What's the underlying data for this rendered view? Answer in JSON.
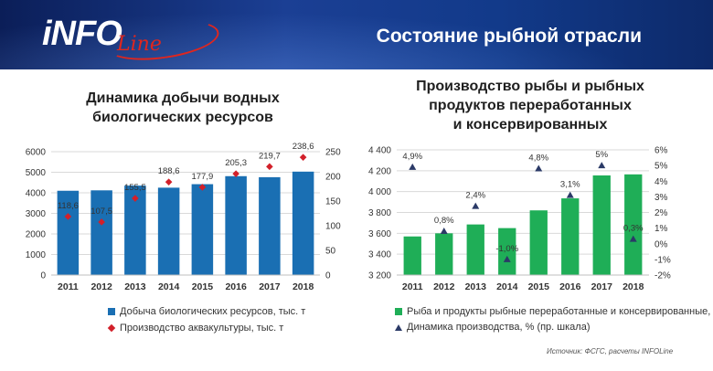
{
  "header": {
    "logo_text": "iNFO",
    "logo_script": "Line",
    "title": "Состояние рыбной отрасли"
  },
  "source": "Источник: ФСГС, расчеты INFOLine",
  "chart_data": [
    {
      "type": "bar",
      "title": "Динамика добычи водных биологических ресурсов",
      "title_lines": [
        "Динамика добычи водных",
        "биологических ресурсов"
      ],
      "categories": [
        "2011",
        "2012",
        "2013",
        "2014",
        "2015",
        "2016",
        "2017",
        "2018"
      ],
      "series": [
        {
          "name": "Добыча биологических ресурсов, тыс. т",
          "kind": "bar",
          "axis": "left",
          "color": "#1a6fb3",
          "values": [
            4100,
            4120,
            4350,
            4250,
            4420,
            4810,
            4760,
            5030
          ]
        },
        {
          "name": "Производство аквакультуры, тыс. т",
          "kind": "marker",
          "axis": "right",
          "color": "#d2202a",
          "values": [
            118.6,
            107.5,
            155.5,
            188.6,
            177.9,
            205.3,
            219.7,
            238.6
          ],
          "labels": [
            "118,6",
            "107,5",
            "155,5",
            "188,6",
            "177,9",
            "205,3",
            "219,7",
            "238,6"
          ]
        }
      ],
      "y_left": {
        "min": 0,
        "max": 6000,
        "ticks": [
          "0",
          "1000",
          "2000",
          "3000",
          "4000",
          "5000",
          "6000"
        ]
      },
      "y_right": {
        "min": 0,
        "max": 250,
        "ticks": [
          "0",
          "50",
          "100",
          "150",
          "200",
          "250"
        ]
      },
      "grid": true,
      "legend_position": "bottom"
    },
    {
      "type": "bar",
      "title": "Производство рыбы и рыбных продуктов переработанных и консервированных",
      "title_lines": [
        "Производство  рыбы и рыбных",
        "продуктов переработанных",
        "и консервированных"
      ],
      "categories": [
        "2011",
        "2012",
        "2013",
        "2014",
        "2015",
        "2016",
        "2017",
        "2018"
      ],
      "series": [
        {
          "name": "Рыба и продукты рыбные переработанные и консервированные, тыс. т",
          "kind": "bar",
          "axis": "left",
          "color": "#1fae57",
          "values": [
            3570,
            3600,
            3685,
            3650,
            3820,
            3935,
            4155,
            4165
          ]
        },
        {
          "name": "Динамика производства, % (пр. шкала)",
          "kind": "marker",
          "axis": "right",
          "color": "#2b3a67",
          "values": [
            4.9,
            0.8,
            2.4,
            -1.0,
            4.8,
            3.1,
            5.0,
            0.3
          ],
          "labels": [
            "4,9%",
            "0,8%",
            "2,4%",
            "-1,0%",
            "4,8%",
            "3,1%",
            "5%",
            "0,3%"
          ]
        }
      ],
      "y_left": {
        "min": 3200,
        "max": 4400,
        "ticks": [
          "3 200",
          "3 400",
          "3 600",
          "3 800",
          "4 000",
          "4 200",
          "4 400"
        ]
      },
      "y_right": {
        "min": -2,
        "max": 6,
        "ticks": [
          "-2%",
          "-1%",
          "0%",
          "1%",
          "2%",
          "3%",
          "4%",
          "5%",
          "6%"
        ]
      },
      "grid": true,
      "legend_position": "bottom"
    }
  ]
}
